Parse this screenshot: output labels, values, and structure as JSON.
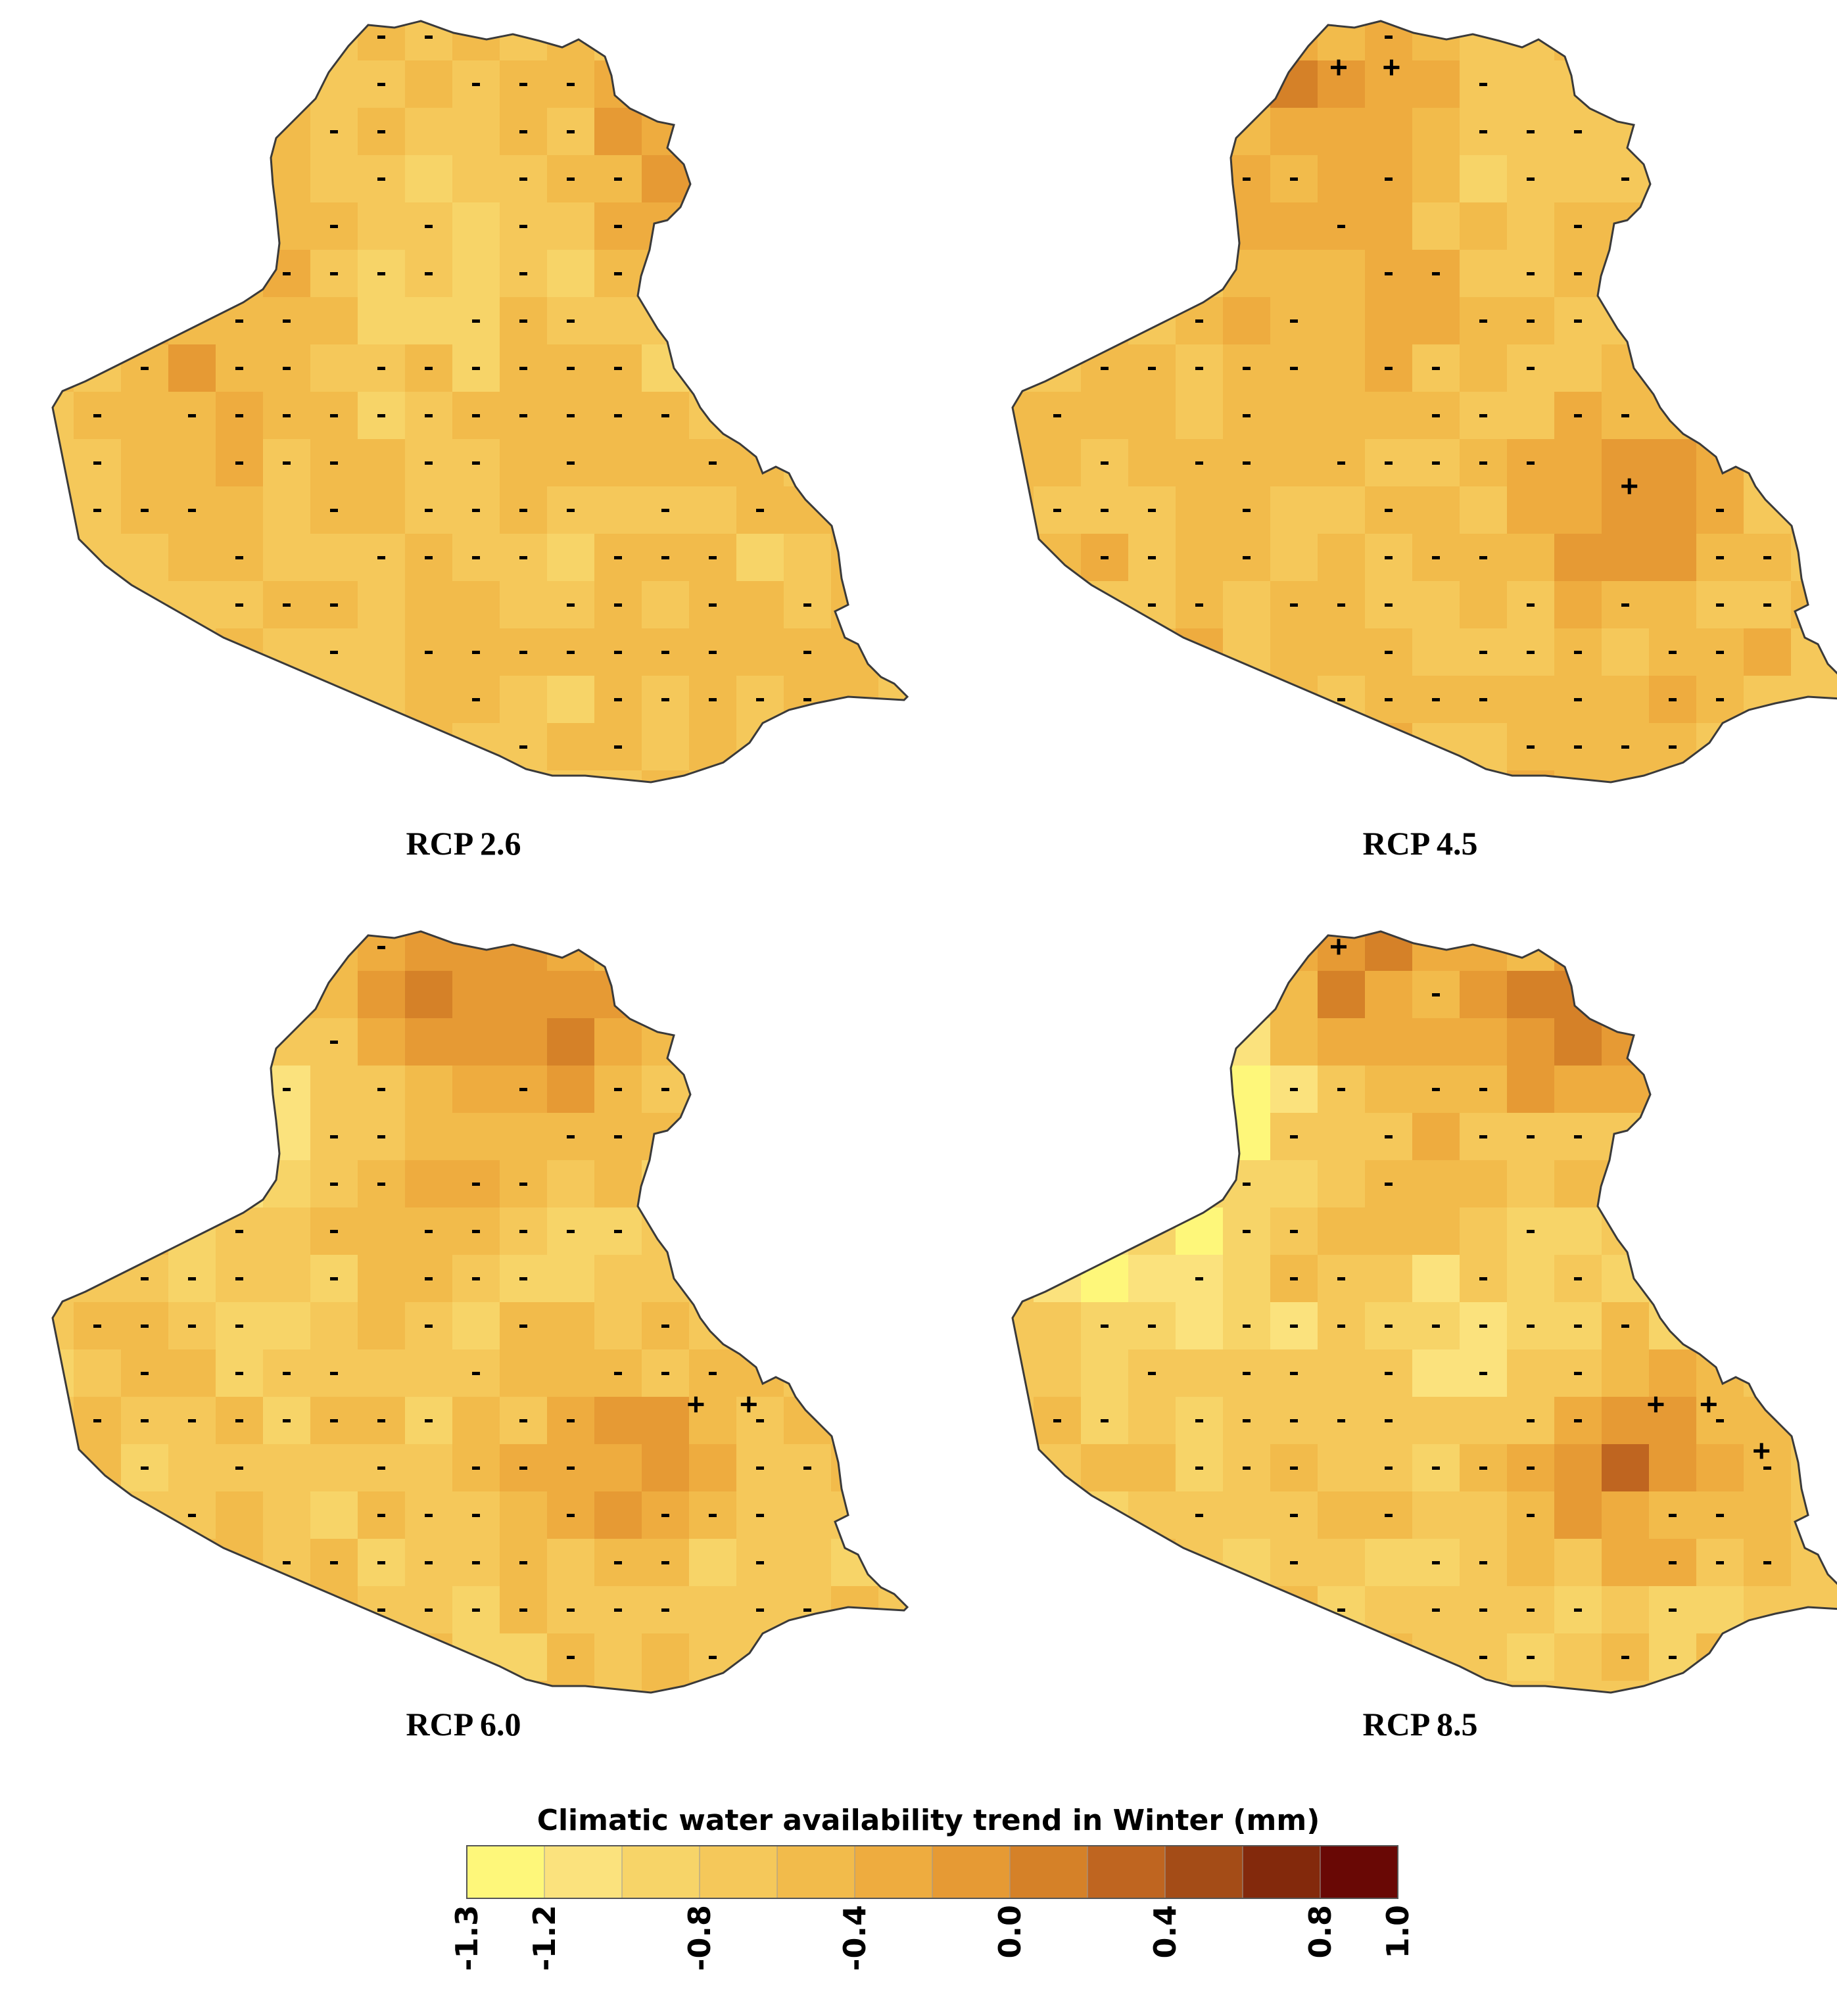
{
  "figure": {
    "panels": [
      {
        "id": "rcp26",
        "label": "RCP 2.6",
        "seed": 26,
        "base": -0.55,
        "noise": 0.2,
        "hot": [
          [
            0.72,
            0.16,
            0.55
          ],
          [
            0.24,
            0.29,
            0.25
          ],
          [
            0.2,
            0.46,
            0.2
          ]
        ],
        "cool": [
          [
            0.45,
            0.29,
            -0.25
          ]
        ],
        "minusDensity": 0.6,
        "plus": []
      },
      {
        "id": "rcp45",
        "label": "RCP 4.5",
        "seed": 45,
        "base": -0.5,
        "noise": 0.18,
        "hot": [
          [
            0.38,
            0.1,
            0.45
          ],
          [
            0.72,
            0.64,
            0.45
          ],
          [
            0.46,
            0.35,
            0.2
          ]
        ],
        "cool": [
          [
            0.66,
            0.2,
            -0.25
          ]
        ],
        "minusDensity": 0.6,
        "plus": [
          [
            0.4,
            0.07
          ],
          [
            0.46,
            0.07
          ],
          [
            0.73,
            0.61
          ]
        ]
      },
      {
        "id": "rcp60",
        "label": "RCP 6.0",
        "seed": 60,
        "base": -0.62,
        "noise": 0.18,
        "hot": [
          [
            0.46,
            0.06,
            0.75
          ],
          [
            0.62,
            0.14,
            0.6
          ],
          [
            0.68,
            0.69,
            0.55
          ],
          [
            0.44,
            0.35,
            0.35
          ]
        ],
        "cool": [
          [
            0.3,
            0.28,
            -0.3
          ]
        ],
        "minusDensity": 0.6,
        "plus": [
          [
            0.76,
            0.62
          ],
          [
            0.82,
            0.62
          ]
        ]
      },
      {
        "id": "rcp85",
        "label": "RCP 8.5",
        "seed": 85,
        "base": -0.62,
        "noise": 0.2,
        "hot": [
          [
            0.4,
            0.07,
            0.85
          ],
          [
            0.66,
            0.12,
            0.8
          ],
          [
            0.73,
            0.68,
            0.75
          ],
          [
            0.46,
            0.34,
            0.5
          ]
        ],
        "cool": [
          [
            0.3,
            0.2,
            -0.55
          ],
          [
            0.18,
            0.45,
            -0.4
          ],
          [
            0.55,
            0.5,
            -0.35
          ]
        ],
        "minusDensity": 0.55,
        "plus": [
          [
            0.4,
            0.03
          ],
          [
            0.76,
            0.62
          ],
          [
            0.82,
            0.62
          ],
          [
            0.88,
            0.68
          ]
        ]
      }
    ],
    "legend": {
      "title": "Climatic water availability trend in Winter (mm)",
      "colors": [
        "#fef77a",
        "#fbe27d",
        "#f7d468",
        "#f5c85a",
        "#f2bb4b",
        "#eeac3f",
        "#e69a34",
        "#d58128",
        "#bf6520",
        "#a44c17",
        "#83290c",
        "#690805"
      ],
      "ticks": [
        {
          "value": "-1.3",
          "index": 0
        },
        {
          "value": "-1.2",
          "index": 1
        },
        {
          "value": "-0.8",
          "index": 3
        },
        {
          "value": "-0.4",
          "index": 5
        },
        {
          "value": "0.0",
          "index": 7
        },
        {
          "value": "0.4",
          "index": 9
        },
        {
          "value": "0.8",
          "index": 11
        },
        {
          "value": "1.0",
          "index": 12
        }
      ],
      "range": [
        -1.3,
        1.0
      ]
    }
  }
}
